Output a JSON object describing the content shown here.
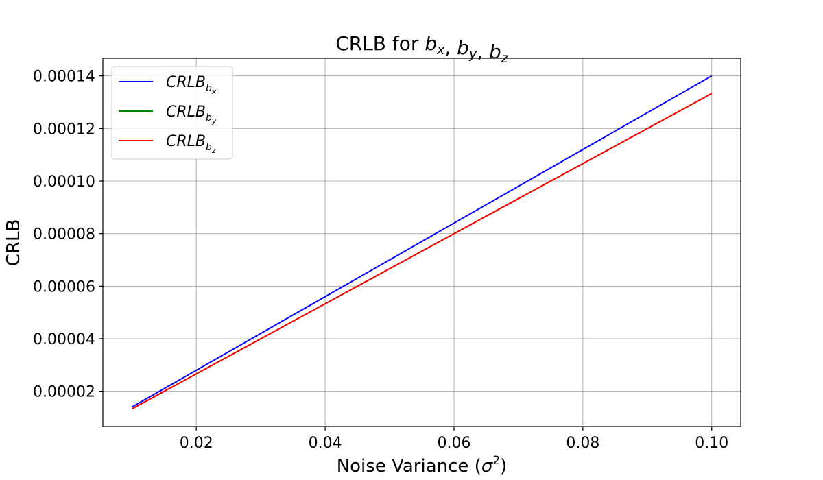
{
  "chart_data": {
    "type": "line",
    "title": {
      "prefix": "CRLB for ",
      "vars": [
        {
          "base": "b",
          "sub": "x"
        },
        {
          "base": "b",
          "sub": "y"
        },
        {
          "base": "b",
          "sub": "z"
        }
      ],
      "sep": ", "
    },
    "xlabel": {
      "prefix": "Noise Variance (",
      "symbol": "σ",
      "power": "2",
      "suffix": ")"
    },
    "ylabel": "CRLB",
    "xlim": [
      0.0055,
      0.1045
    ],
    "ylim": [
      6.6e-06,
      0.0001467
    ],
    "x_ticks": [
      0.02,
      0.04,
      0.06,
      0.08,
      0.1
    ],
    "x_tick_labels": [
      "0.02",
      "0.04",
      "0.06",
      "0.08",
      "0.10"
    ],
    "y_ticks": [
      2e-05,
      4e-05,
      6e-05,
      8e-05,
      0.0001,
      0.00012,
      0.00014
    ],
    "y_tick_labels": [
      "0.00002",
      "0.00004",
      "0.00006",
      "0.00008",
      "0.00010",
      "0.00012",
      "0.00014"
    ],
    "grid": true,
    "legend_position": "top-left",
    "series": [
      {
        "name": "CRLB_b_x",
        "label_base": "CRLB",
        "label_sub": "b",
        "label_subsub": "x",
        "color": "#0000ff",
        "x": [
          0.01,
          0.1
        ],
        "y": [
          1.4e-05,
          0.00014
        ]
      },
      {
        "name": "CRLB_b_y",
        "label_base": "CRLB",
        "label_sub": "b",
        "label_subsub": "y",
        "color": "#008000",
        "x": [
          0.01,
          0.1
        ],
        "y": [
          1.33e-05,
          0.0001333
        ]
      },
      {
        "name": "CRLB_b_z",
        "label_base": "CRLB",
        "label_sub": "b",
        "label_subsub": "z",
        "color": "#ff0000",
        "x": [
          0.01,
          0.1
        ],
        "y": [
          1.33e-05,
          0.0001333
        ]
      }
    ]
  }
}
